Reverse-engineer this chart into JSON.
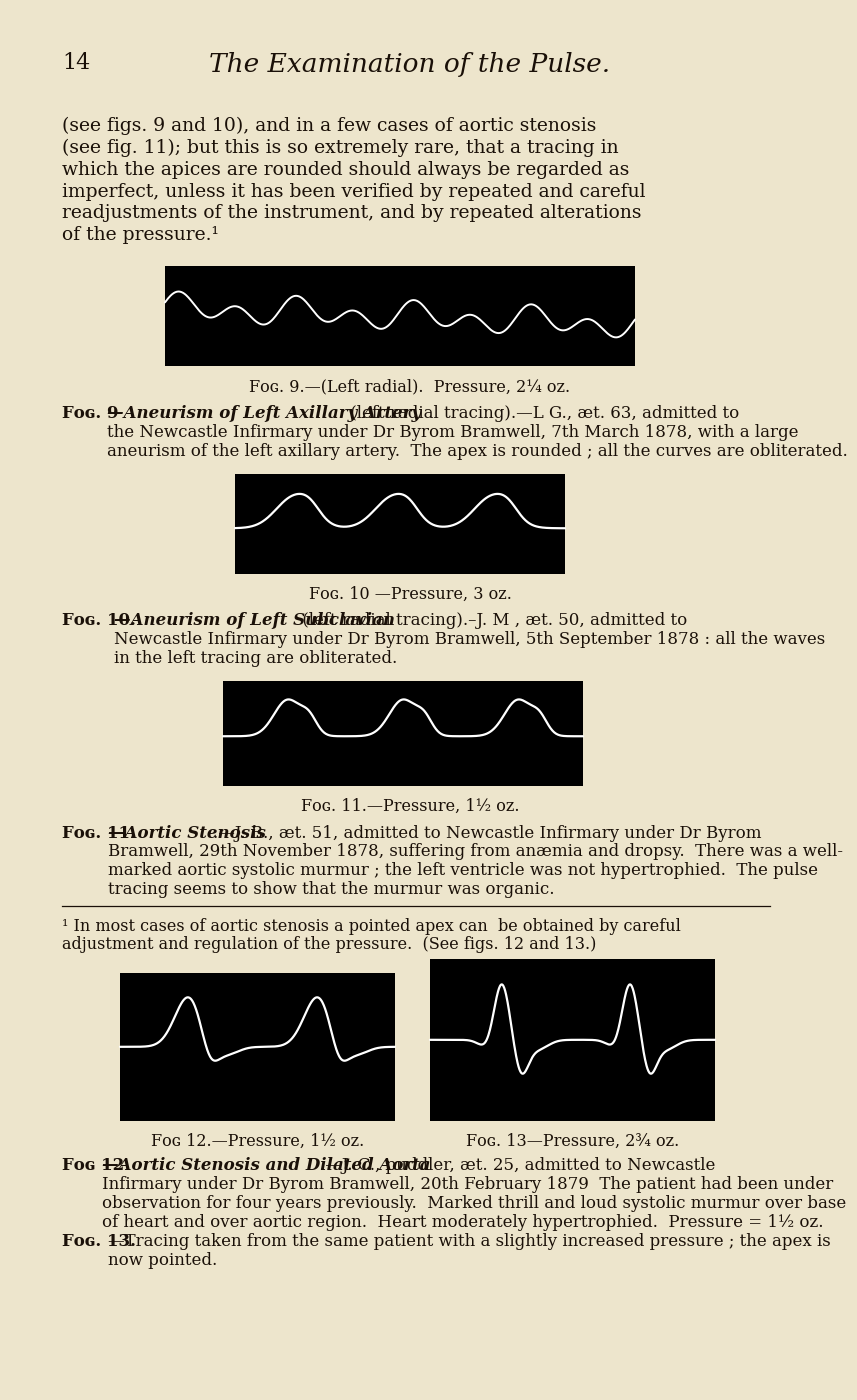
{
  "bg_color": "#ede5cc",
  "page_num": "14",
  "page_title": "The Examination of the Pulse.",
  "body_lines": [
    "(see figs. 9 and 10), and in a few cases of aortic stenosis",
    "(see fig. 11); but this is so extremely rare, that a tracing in",
    "which the apices are rounded should always be regarded as",
    "imperfect, unless it has been verified by repeated and careful",
    "readjustments of the instrument, and by repeated alterations",
    "of the pressure.¹"
  ],
  "fig9_caption": "Fᴏɢ. 9.—(Left radial).  Pressure, 2¼ oz.",
  "fig9_desc_lines": [
    [
      "bold_italic",
      "Fᴏɢ. 9 —",
      "Aneurism of Left Axillary Artery",
      " (",
      "left radial tracing",
      ").—L G., æt. 63, admitted to"
    ],
    [
      "normal",
      "the Newcastle Infirmary under Dr Byrom Bramwell, 7th March 1878, with a large"
    ],
    [
      "normal",
      "aneurism of the left axillary artery.  The apex is rounded ; all the curves are obliterated."
    ]
  ],
  "fig10_caption": "Fᴏɢ. 10 —Pressure, 3 oz.",
  "fig10_desc_lines": [
    [
      "label_italic",
      "Fᴏɢ. 10.—",
      "Aneurism of Left Subclavian",
      " (left radial tracing).–J. M , æt. 50, admitted to"
    ],
    [
      "normal",
      "Newcastle Infirmary under Dr Byrom Bramwell, 5th September 1878 : all the waves"
    ],
    [
      "normal",
      "in the left tracing are obliterated."
    ]
  ],
  "fig11_caption": "Fᴏɢ. 11.—Pressure, 1½ oz.",
  "fig11_desc_lines": [
    [
      "label_italic",
      "Fᴏɢ. 11.—",
      "Aortic Stenosis",
      ".—J. B., æt. 51, admitted to Newcastle Infirmary under Dr Byrom"
    ],
    [
      "normal",
      "Bramwell, 29th November 1878, suffering from anæmia and dropsy.  There was a well-"
    ],
    [
      "normal",
      "marked aortic systolic murmur ; the left ventricle was not hypertrophied.  The pulse"
    ],
    [
      "normal",
      "tracing seems to show that the murmur was organic."
    ]
  ],
  "footnote_text_lines": [
    "¹ In most cases of aortic stenosis a pointed apex can  be obtained by careful",
    "adjustment and regulation of the pressure.  (See figs. 12 and 13.)"
  ],
  "fig12_caption": "Fᴏɢ 12.—Pressure, 1½ oz.",
  "fig13_caption": "Fᴏɢ. 13—Pressure, 2¾ oz.",
  "fig12_desc_lines": [
    [
      "label_italic",
      "Fᴏɢ 12—",
      "Aortic Stenosis and Dilated Aorta",
      ".—J. C., puddler, æt. 25, admitted to Newcastle"
    ],
    [
      "normal",
      "Infirmary under Dr Byrom Bramwell, 20th February 1879  The patient had been under"
    ],
    [
      "normal",
      "observation for four years previously.  Marked thrill and loud systolic murmur over base"
    ],
    [
      "normal",
      "of heart and over aortic region.  Heart moderately hypertrophied.  Pressure = 1½ oz."
    ]
  ],
  "fig13_desc_lines": [
    [
      "label_italic",
      "Fᴏɢ. 13.—",
      "Tracing taken from the same patient with a slightly increased pressure ; the apex is"
    ],
    [
      "normal",
      "now pointed."
    ]
  ],
  "text_size": 13.5,
  "caption_size": 11.5,
  "title_size": 19,
  "pagenum_size": 16,
  "footnote_size": 11.5
}
